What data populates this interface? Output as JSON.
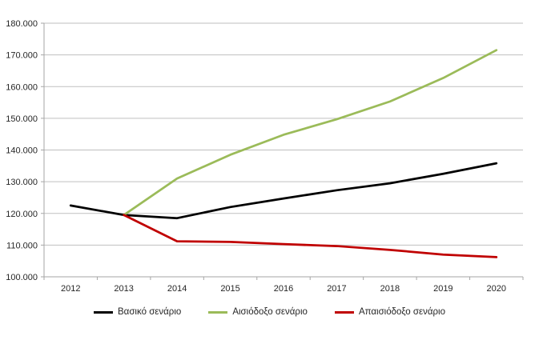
{
  "chart_data": {
    "type": "line",
    "title": "",
    "xlabel": "",
    "ylabel": "",
    "categories": [
      "2012",
      "2013",
      "2014",
      "2015",
      "2016",
      "2017",
      "2018",
      "2019",
      "2020"
    ],
    "series": [
      {
        "name": "Βασικό σενάριο",
        "color": "#000000",
        "values": [
          122500,
          119500,
          118500,
          122000,
          124700,
          127300,
          129500,
          132500,
          135800
        ]
      },
      {
        "name": "Αισιόδοξο σενάριο",
        "color": "#9BBB59",
        "values": [
          null,
          119500,
          131000,
          138500,
          144800,
          149700,
          155300,
          162700,
          171500
        ]
      },
      {
        "name": "Απαισιόδοξο σενάριο",
        "color": "#C00000",
        "values": [
          null,
          119500,
          111200,
          111000,
          110300,
          109700,
          108500,
          107000,
          106200
        ]
      }
    ],
    "ylim": [
      100000,
      180000
    ],
    "ytick_step": 10000,
    "ytick_labels": [
      "100.000",
      "110.000",
      "120.000",
      "130.000",
      "140.000",
      "150.000",
      "160.000",
      "170.000",
      "180.000"
    ],
    "grid": true,
    "legend_position": "bottom",
    "colors": {
      "gridline": "#bfbfbf",
      "axis": "#a6a6a6",
      "text": "#262626",
      "background": "#ffffff"
    }
  }
}
